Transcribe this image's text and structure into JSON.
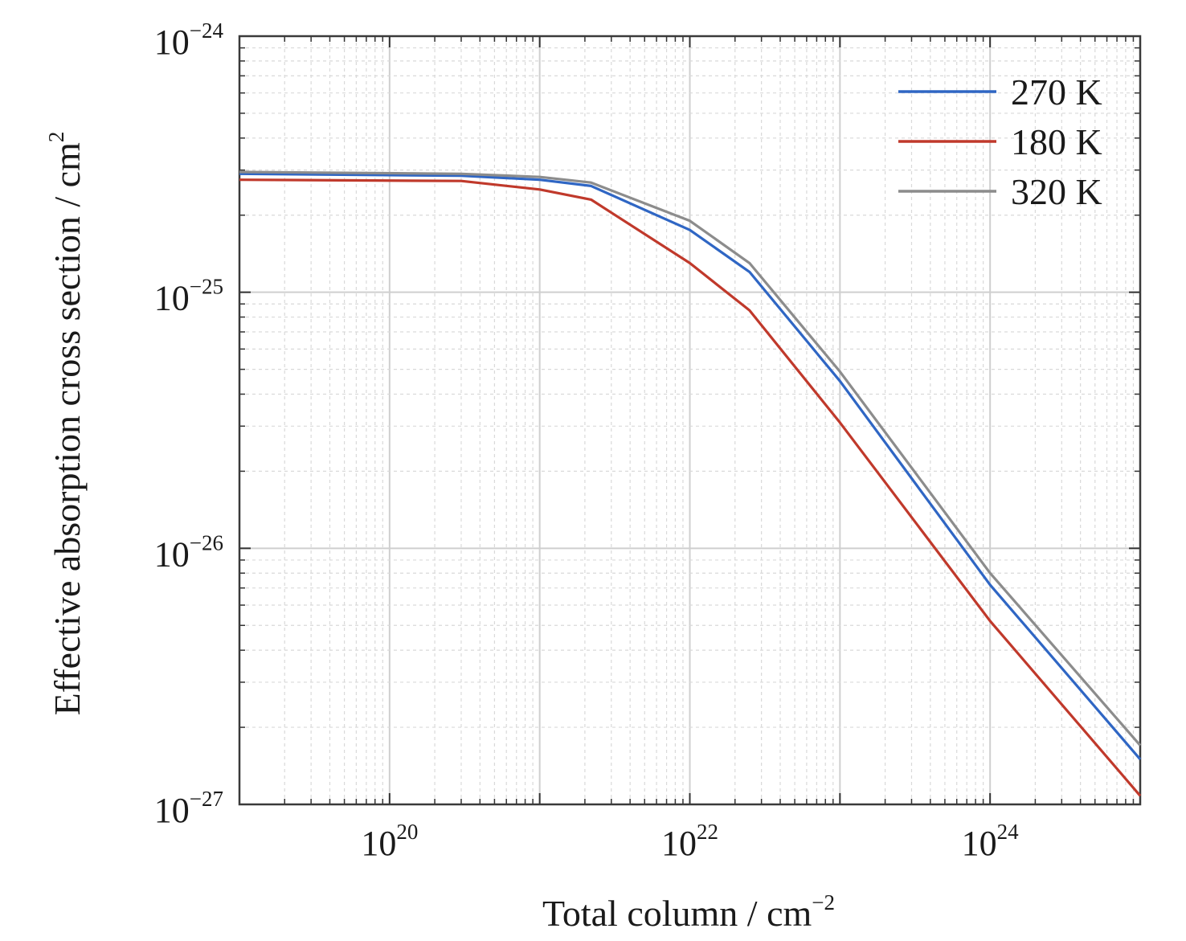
{
  "chart_data": {
    "type": "line",
    "xscale": "log",
    "yscale": "log",
    "xlabel": {
      "text": "Total column / cm",
      "sup": "−2"
    },
    "ylabel": {
      "text": "Effective absorption cross section / cm",
      "sup": "2"
    },
    "xlim": [
      1e+19,
      1e+25
    ],
    "ylim": [
      1e-27,
      1e-24
    ],
    "grid": true,
    "legend_position": "top-right",
    "x_ticks": [
      {
        "value": 1e+20,
        "base": "10",
        "exp": "20"
      },
      {
        "value": 1e+22,
        "base": "10",
        "exp": "22"
      },
      {
        "value": 1e+24,
        "base": "10",
        "exp": "24"
      }
    ],
    "y_ticks": [
      {
        "value": 1e-24,
        "base": "10",
        "exp": "−24"
      },
      {
        "value": 1e-25,
        "base": "10",
        "exp": "−25"
      },
      {
        "value": 1e-26,
        "base": "10",
        "exp": "−26"
      },
      {
        "value": 1e-27,
        "base": "10",
        "exp": "−27"
      }
    ],
    "series": [
      {
        "name": "270 K",
        "color": "#2f66c4",
        "x": [
          1e+19,
          3e+20,
          1e+21,
          2.2e+21,
          1e+22,
          2.5e+22,
          1e+23,
          1e+24,
          1e+25
        ],
        "y": [
          2.9e-25,
          2.85e-25,
          2.75e-25,
          2.6e-25,
          1.75e-25,
          1.2e-25,
          4.5e-26,
          7.2e-27,
          1.5e-27
        ]
      },
      {
        "name": "180 K",
        "color": "#c0392b",
        "x": [
          1e+19,
          3e+20,
          1e+21,
          2.2e+21,
          1e+22,
          2.5e+22,
          1e+23,
          1e+24,
          1e+25
        ],
        "y": [
          2.75e-25,
          2.72e-25,
          2.52e-25,
          2.3e-25,
          1.3e-25,
          8.5e-26,
          3.1e-26,
          5.2e-27,
          1.08e-27
        ]
      },
      {
        "name": "320 K",
        "color": "#8c8c8c",
        "x": [
          1e+19,
          3e+20,
          1e+21,
          2.2e+21,
          1e+22,
          2.5e+22,
          1e+23,
          1e+24,
          1e+25
        ],
        "y": [
          2.95e-25,
          2.9e-25,
          2.82e-25,
          2.68e-25,
          1.9e-25,
          1.3e-25,
          4.9e-26,
          8e-27,
          1.7e-27
        ]
      }
    ]
  }
}
